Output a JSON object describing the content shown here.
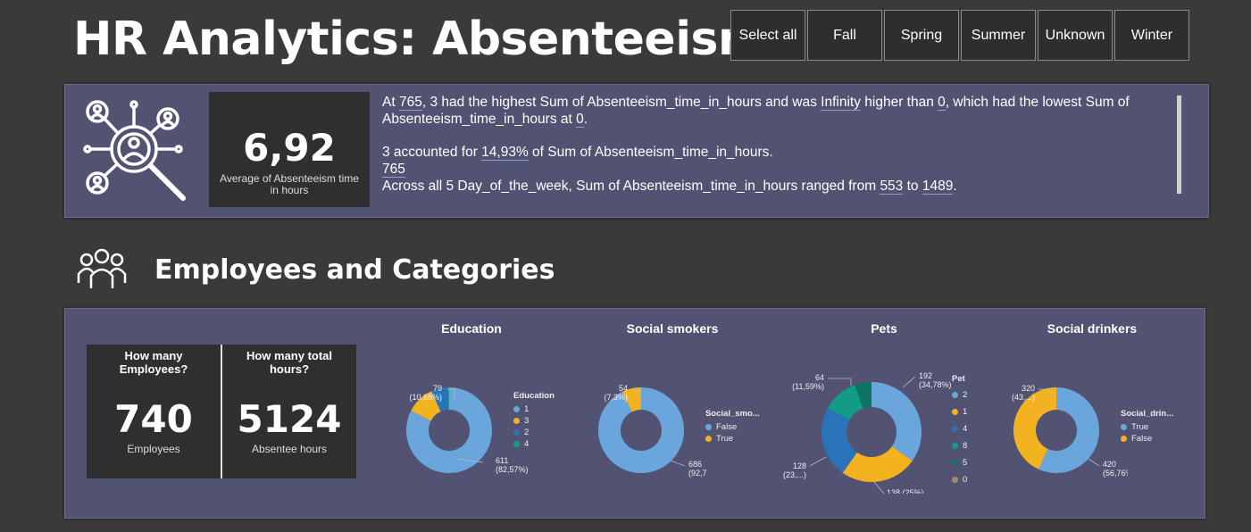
{
  "header": {
    "title": "HR Analytics: Absenteeism",
    "season_slicer": [
      "Select all",
      "Fall",
      "Spring",
      "Summer",
      "Unknown",
      "Winter"
    ]
  },
  "top_panel": {
    "icon": "people-search-icon",
    "kpi_value": "6,92",
    "kpi_label": "Average of Absenteeism time in hours",
    "insight_1_a": "At ",
    "insight_1_b": "765",
    "insight_1_c": ", 3 had the highest Sum of Absenteeism_time_in_hours and was ",
    "insight_1_d": "Infinity",
    "insight_1_e": " higher than ",
    "insight_1_f": "0",
    "insight_1_g": ", which had the lowest Sum of Absenteeism_time_in_hours at ",
    "insight_1_h": "0",
    "insight_1_i": ".",
    "insight_2_a": "3 accounted for ",
    "insight_2_b": "14,93%",
    "insight_2_c": " of Sum of Absenteeism_time_in_hours.",
    "insight_3": "765",
    "insight_4_a": "Across all 5 Day_of_the_week, Sum of Absenteeism_time_in_hours ranged from ",
    "insight_4_b": "553",
    "insight_4_c": " to ",
    "insight_4_d": "1489",
    "insight_4_e": "."
  },
  "section": {
    "icon": "group-icon",
    "title": "Employees and Categories"
  },
  "kpis": {
    "employees_q": "How many Employees?",
    "employees_value": "740",
    "employees_label": "Employees",
    "hours_q": "How many total hours?",
    "hours_value": "5124",
    "hours_label": "Absentee hours"
  },
  "colors": {
    "light_blue": "#6aa6dc",
    "yellow": "#f3b320",
    "blue": "#2a73b8",
    "teal": "#139b85",
    "dark_teal": "#0e7264",
    "brown": "#a4886a"
  },
  "chart_data": [
    {
      "type": "pie",
      "title": "Education",
      "legend_title": "Education",
      "categories": [
        "1",
        "3",
        "2",
        "4"
      ],
      "values": [
        611,
        79,
        46,
        4
      ],
      "labels": [
        "611\n(82,57%)",
        "79\n(10,68%)"
      ],
      "colors": [
        "#6aa6dc",
        "#f3b320",
        "#2a73b8",
        "#139b85"
      ]
    },
    {
      "type": "pie",
      "title": "Social smokers",
      "legend_title": "Social_smo...",
      "categories": [
        "False",
        "True"
      ],
      "values": [
        686,
        54
      ],
      "labels": [
        "686\n(92,7%)",
        "54\n(7,3%)"
      ],
      "colors": [
        "#6aa6dc",
        "#f3b320"
      ]
    },
    {
      "type": "pie",
      "title": "Pets",
      "legend_title": "Pet",
      "categories": [
        "2",
        "1",
        "4",
        "8",
        "5",
        "0"
      ],
      "values": [
        192,
        138,
        128,
        64,
        30,
        0
      ],
      "labels": [
        "192\n(34,78%)",
        "138 (25%)",
        "128\n(23,...)",
        "64\n(11,59%)"
      ],
      "colors": [
        "#6aa6dc",
        "#f3b320",
        "#2a73b8",
        "#139b85",
        "#0e7264",
        "#a4886a"
      ]
    },
    {
      "type": "pie",
      "title": "Social drinkers",
      "legend_title": "Social_drin...",
      "categories": [
        "True",
        "False"
      ],
      "values": [
        420,
        320
      ],
      "labels": [
        "420\n(56,76%)",
        "320\n(43,...)"
      ],
      "colors": [
        "#6aa6dc",
        "#f3b320"
      ]
    }
  ]
}
